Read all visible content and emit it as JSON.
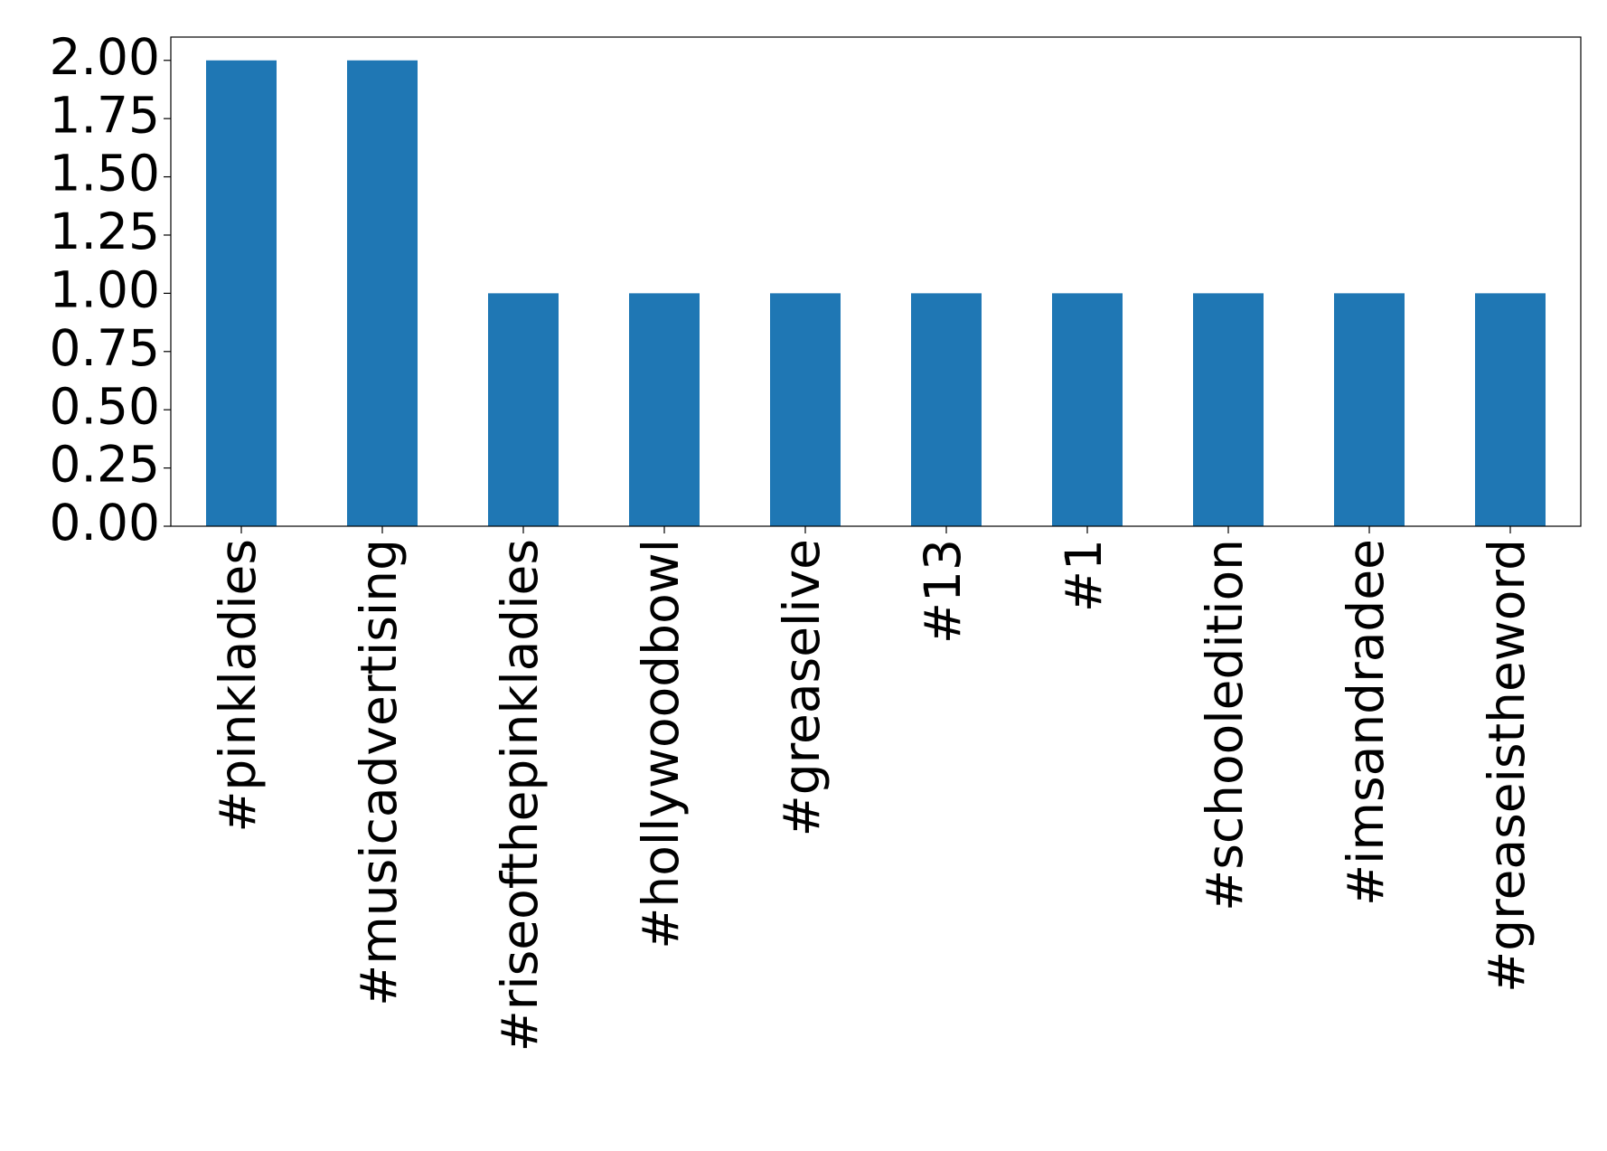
{
  "chart_data": {
    "type": "bar",
    "categories": [
      "#pinkladies",
      "#musicadvertising",
      "#riseofthepinkladies",
      "#hollywoodbowl",
      "#greaselive",
      "#13",
      "#1",
      "#schooledition",
      "#imsandradee",
      "#greaseistheword"
    ],
    "values": [
      2,
      2,
      1,
      1,
      1,
      1,
      1,
      1,
      1,
      1
    ],
    "color": "#1f77b4",
    "ylim": [
      0,
      2.1
    ],
    "yticks": [
      {
        "value": 0,
        "label": "0.00"
      },
      {
        "value": 0.25,
        "label": "0.25"
      },
      {
        "value": 0.5,
        "label": "0.50"
      },
      {
        "value": 0.75,
        "label": "0.75"
      },
      {
        "value": 1,
        "label": "1.00"
      },
      {
        "value": 1.25,
        "label": "1.25"
      },
      {
        "value": 1.5,
        "label": "1.50"
      },
      {
        "value": 1.75,
        "label": "1.75"
      },
      {
        "value": 2,
        "label": "2.00"
      }
    ],
    "grid": false
  }
}
